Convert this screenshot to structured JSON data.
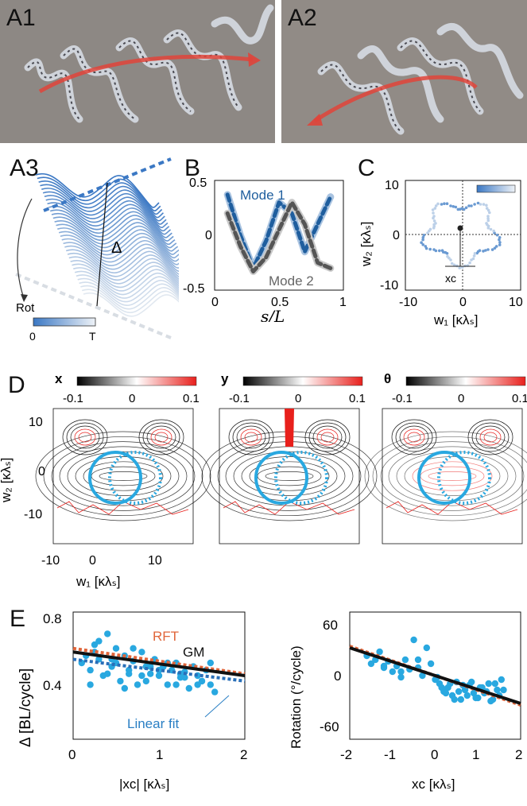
{
  "panels": {
    "A1": "A1",
    "A2": "A2",
    "A3": "A3",
    "B": "B",
    "C": "C",
    "D": "D",
    "E": "E"
  },
  "a3": {
    "rot_label": "Rot",
    "delta_label": "Δ",
    "colorbar_min": "0",
    "colorbar_max": "T",
    "colors": {
      "dark": "#3b78c4",
      "light": "#dbe5f0"
    }
  },
  "b": {
    "mode1": "Mode 1",
    "mode2": "Mode 2",
    "xlabel": "s/L",
    "xticks": [
      "0",
      "0.5",
      "1"
    ],
    "yticks": [
      "0.5",
      "0",
      "-0.5"
    ]
  },
  "c": {
    "xlabel": "w₁ [κλₛ]",
    "ylabel": "w₂ [κλₛ]",
    "xticks": [
      "-10",
      "0",
      "10"
    ],
    "yticks": [
      "10",
      "0",
      "-10"
    ],
    "xc_label": "xc"
  },
  "d": {
    "titles": [
      "x",
      "y",
      "θ"
    ],
    "cb_ticks": [
      "-0.1",
      "0",
      "0.1"
    ],
    "xlabel": "w₁ [κλₛ]",
    "ylabel": "w₂ [κλₛ]",
    "xticks": [
      "-10",
      "0",
      "10"
    ],
    "yticks": [
      "10",
      "0",
      "-10"
    ],
    "circle_color": "#29a8e0"
  },
  "e": {
    "left": {
      "ylabel": "Δ [BL/cycle]",
      "xlabel": "|xc| [κλₛ]",
      "xticks": [
        "0",
        "1",
        "2"
      ],
      "yticks": [
        "0.8",
        "0.4"
      ],
      "rft": "RFT",
      "gm": "GM",
      "linear": "Linear fit"
    },
    "right": {
      "ylabel": "Rotation (°/cycle)",
      "xlabel": "xc [κλₛ]",
      "xticks": [
        "-2",
        "-1",
        "0",
        "1",
        "2"
      ],
      "yticks": [
        "60",
        "0",
        "-60"
      ]
    },
    "colors": {
      "points": "#29a8e0",
      "rft": "#e0653a",
      "gm": "#111111",
      "linear": "#2a6fb8"
    }
  },
  "chart_data": [
    {
      "type": "line",
      "panel": "B",
      "x": [
        0.1,
        0.2,
        0.3,
        0.4,
        0.5,
        0.6,
        0.7,
        0.8,
        0.9
      ],
      "series": [
        {
          "name": "Mode 1",
          "values": [
            0.37,
            0.0,
            -0.3,
            -0.05,
            0.3,
            0.2,
            -0.15,
            0.1,
            0.35
          ]
        },
        {
          "name": "Mode 2",
          "values": [
            0.2,
            -0.1,
            -0.33,
            -0.2,
            0.05,
            0.3,
            0.1,
            -0.25,
            -0.3
          ]
        }
      ],
      "xlabel": "s/L",
      "xlim": [
        0,
        1
      ],
      "ylim": [
        -0.5,
        0.5
      ]
    },
    {
      "type": "scatter",
      "panel": "E-left",
      "x": [
        0.1,
        0.15,
        0.2,
        0.25,
        0.3,
        0.35,
        0.4,
        0.45,
        0.5,
        0.55,
        0.6,
        0.65,
        0.7,
        0.75,
        0.8,
        0.85,
        0.9,
        0.95,
        1.0,
        1.05,
        1.1,
        1.15,
        1.2,
        1.25,
        1.3,
        1.35,
        1.4,
        1.45,
        1.5,
        1.55,
        1.6,
        1.65,
        0.2,
        0.3,
        0.4,
        0.5,
        0.6,
        0.7,
        0.8,
        0.9,
        1.0,
        1.1,
        1.2,
        1.3,
        1.4,
        1.5,
        1.6,
        0.25,
        0.45,
        0.65,
        0.85,
        1.05,
        1.25,
        1.45
      ],
      "series": [
        {
          "values": [
            0.62,
            0.66,
            0.58,
            0.72,
            0.64,
            0.55,
            0.78,
            0.6,
            0.7,
            0.52,
            0.66,
            0.58,
            0.63,
            0.5,
            0.68,
            0.6,
            0.56,
            0.64,
            0.55,
            0.6,
            0.5,
            0.58,
            0.62,
            0.54,
            0.57,
            0.48,
            0.6,
            0.55,
            0.52,
            0.58,
            0.5,
            0.46,
            0.5,
            0.74,
            0.56,
            0.62,
            0.48,
            0.7,
            0.55,
            0.6,
            0.58,
            0.62,
            0.5,
            0.54,
            0.6,
            0.52,
            0.62,
            0.68,
            0.64,
            0.56,
            0.52,
            0.6,
            0.56,
            0.5
          ]
        }
      ],
      "lines": [
        {
          "name": "RFT",
          "x": [
            0,
            2
          ],
          "y": [
            0.7,
            0.56
          ]
        },
        {
          "name": "GM",
          "x": [
            0,
            2
          ],
          "y": [
            0.68,
            0.55
          ]
        },
        {
          "name": "Linear fit",
          "x": [
            0,
            2
          ],
          "y": [
            0.64,
            0.52
          ]
        }
      ],
      "xlim": [
        0,
        2
      ],
      "ylim": [
        0.2,
        0.9
      ]
    },
    {
      "type": "scatter",
      "panel": "E-right",
      "x": [
        -1.6,
        -1.5,
        -1.4,
        -1.3,
        -1.2,
        -1.1,
        -1.0,
        -0.9,
        -0.8,
        -0.7,
        -0.6,
        -0.5,
        -0.4,
        -0.3,
        -0.2,
        -0.1,
        0.0,
        0.1,
        0.2,
        0.3,
        0.4,
        0.5,
        0.6,
        0.7,
        0.8,
        0.9,
        1.0,
        1.1,
        1.2,
        1.3,
        1.4,
        1.5,
        1.6,
        0.05,
        0.15,
        0.25,
        0.35,
        0.45,
        0.55,
        0.65,
        0.75,
        0.85,
        0.95,
        1.05,
        1.15,
        1.25,
        1.35,
        1.45,
        1.55,
        -0.4,
        -0.8,
        -1.2
      ],
      "series": [
        {
          "values": [
            25,
            15,
            20,
            30,
            10,
            18,
            5,
            12,
            -2,
            20,
            8,
            45,
            10,
            0,
            35,
            15,
            -5,
            -10,
            -20,
            -15,
            -25,
            -8,
            -30,
            -18,
            -12,
            -22,
            -28,
            -15,
            -20,
            -32,
            -10,
            -25,
            -18,
            -2,
            -15,
            -22,
            -10,
            -30,
            -20,
            -12,
            -25,
            -8,
            -28,
            -15,
            -22,
            -10,
            -30,
            -18,
            -5,
            20,
            5,
            12
          ]
        }
      ],
      "lines": [
        {
          "name": "fit",
          "x": [
            -2,
            2
          ],
          "y": [
            35,
            -35
          ]
        }
      ],
      "xlim": [
        -2,
        2
      ],
      "ylim": [
        -80,
        80
      ]
    }
  ]
}
